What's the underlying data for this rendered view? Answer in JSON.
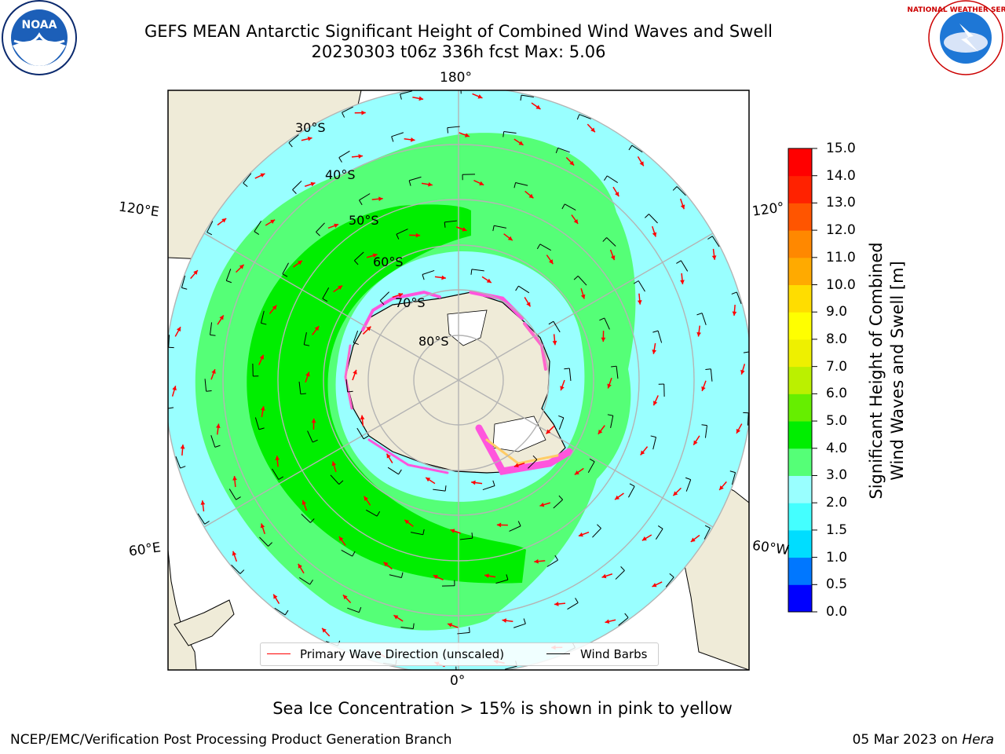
{
  "title_line1": "GEFS MEAN Antarctic Significant Height of Combined Wind Waves and Swell",
  "title_line2": "20230303 t06z 336h fcst   Max: 5.06",
  "logos": {
    "left": "noaa-logo",
    "right": "national-weather-service-logo",
    "left_text": "NOAA",
    "right_text": "NATIONAL WEATHER SERVICE"
  },
  "longitude_labels": {
    "top": "180°",
    "left_upper": "120°E",
    "right_upper": "120°",
    "left_lower": "60°E",
    "right_lower": "60°W",
    "bottom": "0°"
  },
  "latitude_labels": [
    "30°S",
    "40°S",
    "50°S",
    "60°S",
    "70°S",
    "80°S"
  ],
  "legend": {
    "wave_label": "Primary Wave Direction (unscaled)",
    "barb_label": "Wind Barbs",
    "wave_color": "#ff0000",
    "barb_color": "#000000"
  },
  "colorbar": {
    "label_line1": "Significant Height of Combined",
    "label_line2": "Wind Waves and Swell [m]",
    "ticks": [
      "0.0",
      "0.5",
      "1.0",
      "1.5",
      "2.0",
      "3.0",
      "4.0",
      "5.0",
      "6.0",
      "7.0",
      "8.0",
      "9.0",
      "10.0",
      "11.0",
      "12.0",
      "13.0",
      "14.0",
      "15.0"
    ],
    "colors": [
      "#0000ff",
      "#0077ff",
      "#00ddff",
      "#44ffff",
      "#99ffff",
      "#55ff77",
      "#00ee00",
      "#66ee00",
      "#bbf000",
      "#eef000",
      "#ffff00",
      "#ffdd00",
      "#ffaa00",
      "#ff8800",
      "#ff5500",
      "#ff2200",
      "#ff0000"
    ]
  },
  "map_colors": {
    "land": "#efebd8",
    "ice_sheet": "#ffffff",
    "sea_ice": "#ff55dd",
    "graticule": "#b4b4b4"
  },
  "footer": {
    "ice_note": "Sea Ice Concentration > 15% is shown in pink to yellow",
    "credit": "NCEP/EMC/Verification Post Processing Product Generation Branch",
    "date": "05 Mar 2023 on ",
    "machine": "Hera"
  }
}
